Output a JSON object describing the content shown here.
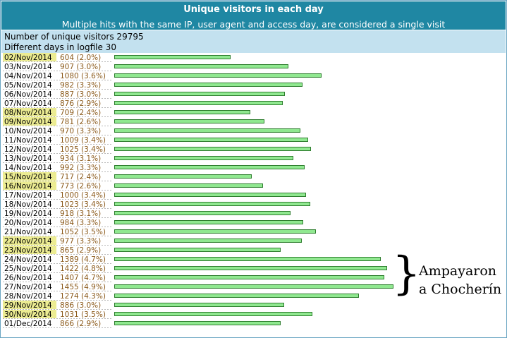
{
  "header": {
    "title": "Unique visitors in each day",
    "subtitle": "Multiple hits with the same IP, user agent and access day, are considered a single visit"
  },
  "summary": {
    "unique_visitors": "Number of unique visitors 29795",
    "different_days": "Different days in logfile 30"
  },
  "annotation": {
    "brace": "}",
    "line1": "Ampayaron",
    "line2": "a Chocherín"
  },
  "colors": {
    "header_bg": "#1f87a3",
    "summary_bg": "#c3e1ef",
    "bar_fill": "#90e890",
    "bar_stroke": "#2e7d2e",
    "weekend_highlight": "#ecec92",
    "value_text": "#8b5a1b"
  },
  "chart_data": {
    "type": "bar",
    "orientation": "horizontal",
    "categories": [
      "02/Nov/2014",
      "03/Nov/2014",
      "04/Nov/2014",
      "05/Nov/2014",
      "06/Nov/2014",
      "07/Nov/2014",
      "08/Nov/2014",
      "09/Nov/2014",
      "10/Nov/2014",
      "11/Nov/2014",
      "12/Nov/2014",
      "13/Nov/2014",
      "14/Nov/2014",
      "15/Nov/2014",
      "16/Nov/2014",
      "17/Nov/2014",
      "18/Nov/2014",
      "19/Nov/2014",
      "20/Nov/2014",
      "21/Nov/2014",
      "22/Nov/2014",
      "23/Nov/2014",
      "24/Nov/2014",
      "25/Nov/2014",
      "26/Nov/2014",
      "27/Nov/2014",
      "28/Nov/2014",
      "29/Nov/2014",
      "30/Nov/2014",
      "01/Dec/2014"
    ],
    "values": [
      604,
      907,
      1080,
      982,
      887,
      876,
      709,
      781,
      970,
      1009,
      1025,
      934,
      992,
      717,
      773,
      1000,
      1023,
      918,
      984,
      1052,
      977,
      865,
      1389,
      1422,
      1407,
      1455,
      1274,
      886,
      1031,
      866
    ],
    "labels": [
      "604 (2.0%)",
      "907 (3.0%)",
      "1080 (3.6%)",
      "982 (3.3%)",
      "887 (3.0%)",
      "876 (2.9%)",
      "709 (2.4%)",
      "781 (2.6%)",
      "970 (3.3%)",
      "1009 (3.4%)",
      "1025 (3.4%)",
      "934 (3.1%)",
      "992 (3.3%)",
      "717 (2.4%)",
      "773 (2.6%)",
      "1000 (3.4%)",
      "1023 (3.4%)",
      "918 (3.1%)",
      "984 (3.3%)",
      "1052 (3.5%)",
      "977 (3.3%)",
      "865 (2.9%)",
      "1389 (4.7%)",
      "1422 (4.8%)",
      "1407 (4.7%)",
      "1455 (4.9%)",
      "1274 (4.3%)",
      "886 (3.0%)",
      "1031 (3.5%)",
      "866 (2.9%)"
    ],
    "weekend": [
      true,
      false,
      false,
      false,
      false,
      false,
      true,
      true,
      false,
      false,
      false,
      false,
      false,
      true,
      true,
      false,
      false,
      false,
      false,
      false,
      true,
      true,
      false,
      false,
      false,
      false,
      false,
      true,
      true,
      false
    ]
  }
}
